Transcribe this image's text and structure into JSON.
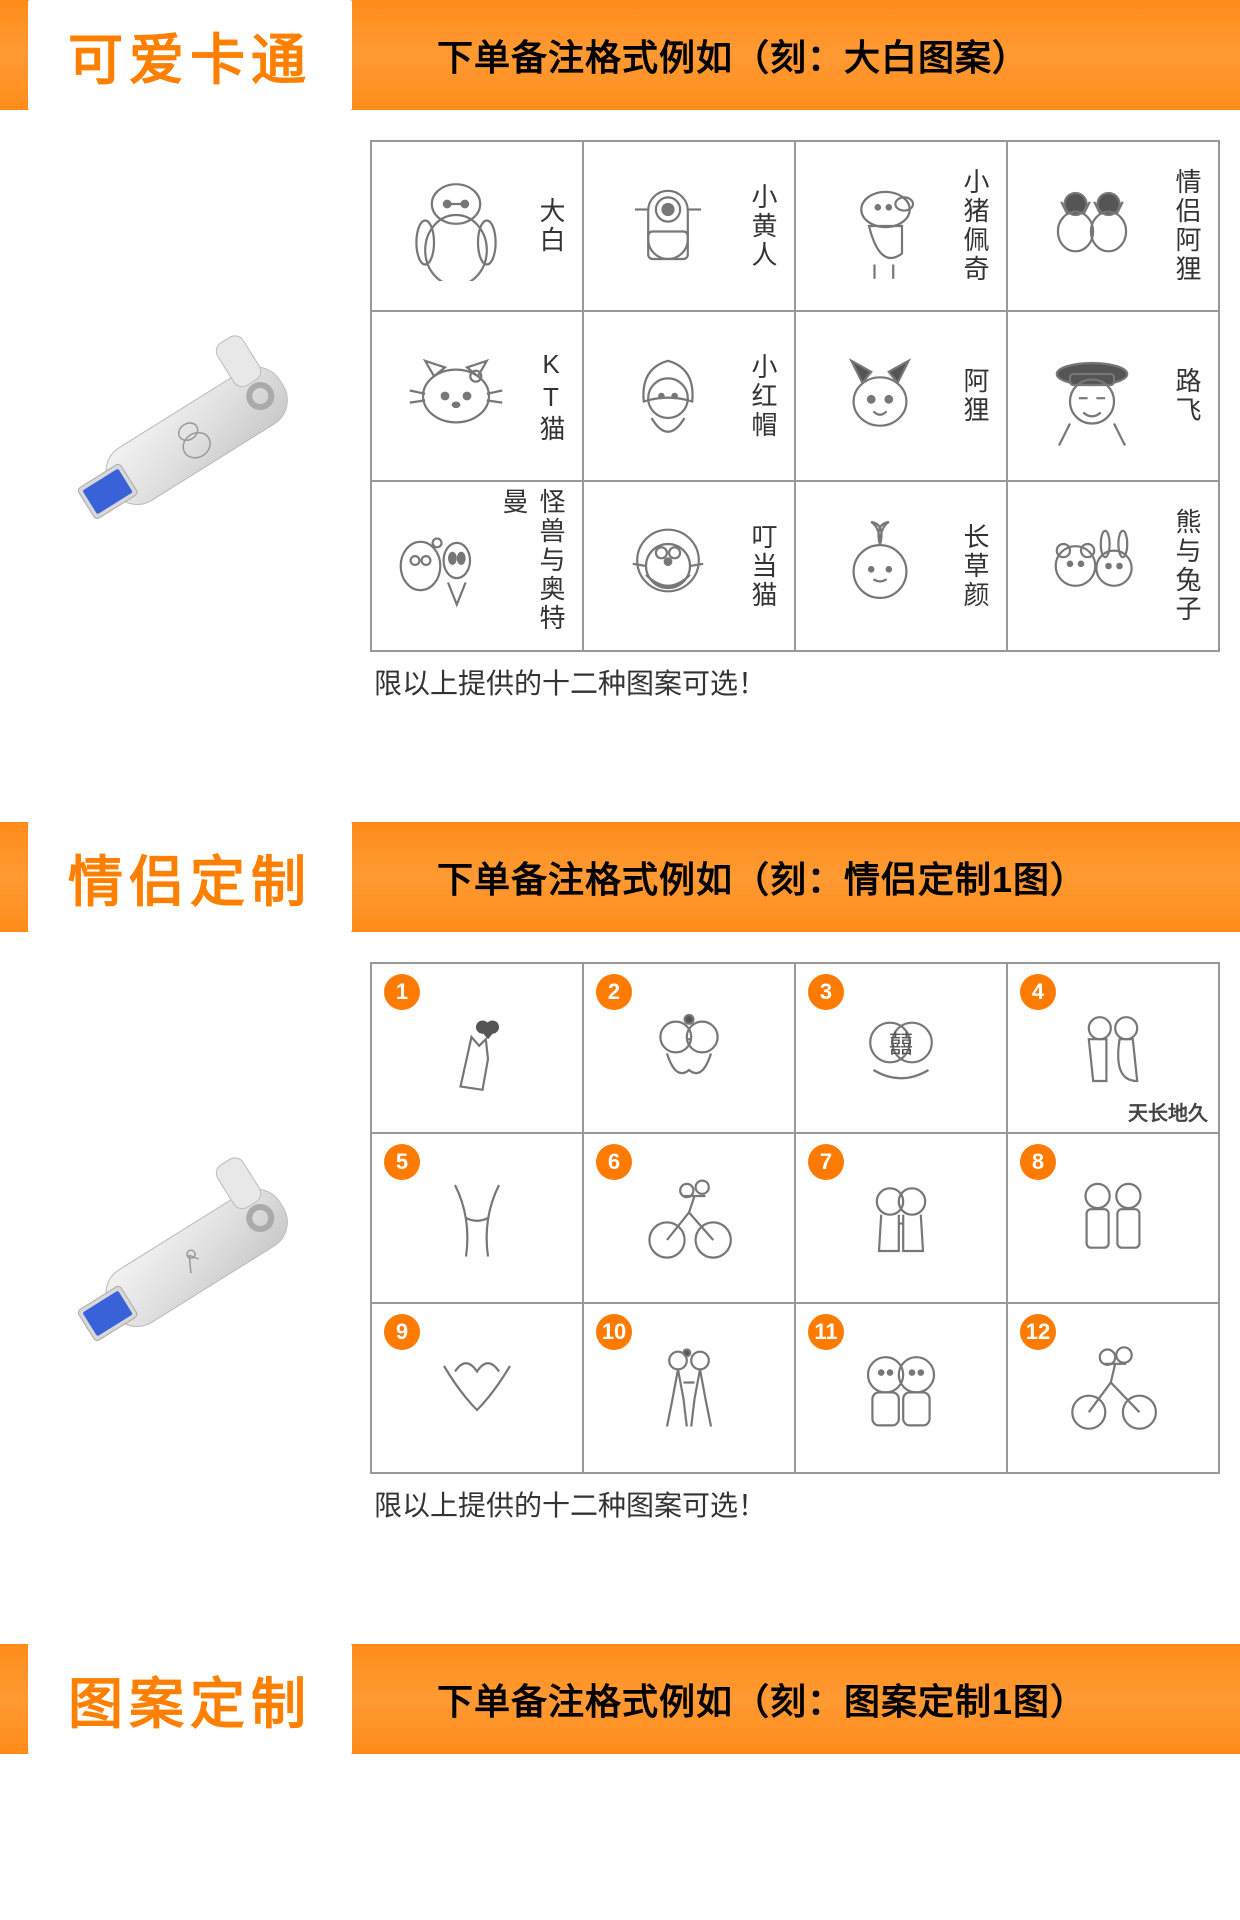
{
  "sections": [
    {
      "title": "可爱卡通",
      "subtitle": "下单备注格式例如（刻：大白图案）",
      "caption": "限以上提供的十二种图案可选！",
      "grid_type": "labeled",
      "cells": [
        {
          "label": "大白",
          "icon": "baymax"
        },
        {
          "label": "小黄人",
          "icon": "minion"
        },
        {
          "label": "小猪佩奇",
          "icon": "peppa"
        },
        {
          "label": "情侣阿狸",
          "icon": "ali-couple"
        },
        {
          "label": "KT猫",
          "icon": "hello-kitty"
        },
        {
          "label": "小红帽",
          "icon": "red-hood"
        },
        {
          "label": "阿狸",
          "icon": "ali"
        },
        {
          "label": "路飞",
          "icon": "luffy"
        },
        {
          "label": "怪兽与奥特曼",
          "icon": "ultraman"
        },
        {
          "label": "叮当猫",
          "icon": "doraemon"
        },
        {
          "label": "长草颜",
          "icon": "budding"
        },
        {
          "label": "熊与兔子",
          "icon": "bear-rabbit"
        }
      ]
    },
    {
      "title": "情侣定制",
      "subtitle": "下单备注格式例如（刻：情侣定制1图）",
      "caption": "限以上提供的十二种图案可选！",
      "grid_type": "numbered",
      "cells": [
        {
          "num": "1",
          "icon": "finger-heart"
        },
        {
          "num": "2",
          "icon": "kiss"
        },
        {
          "num": "3",
          "icon": "double-xi"
        },
        {
          "num": "4",
          "icon": "wedding",
          "sub": "天长地久"
        },
        {
          "num": "5",
          "icon": "hands"
        },
        {
          "num": "6",
          "icon": "bike-couple"
        },
        {
          "num": "7",
          "icon": "chibi-hug"
        },
        {
          "num": "8",
          "icon": "chibi-couple"
        },
        {
          "num": "9",
          "icon": "heart-hands"
        },
        {
          "num": "10",
          "icon": "couple-walk"
        },
        {
          "num": "11",
          "icon": "chibi-pair"
        },
        {
          "num": "12",
          "icon": "bike-ride"
        }
      ]
    },
    {
      "title": "图案定制",
      "subtitle": "下单备注格式例如（刻：图案定制1图）",
      "grid_type": "none"
    }
  ],
  "colors": {
    "accent": "#ff8c1a",
    "badge": "#ff7b00",
    "text": "#333333",
    "border": "#999999"
  }
}
